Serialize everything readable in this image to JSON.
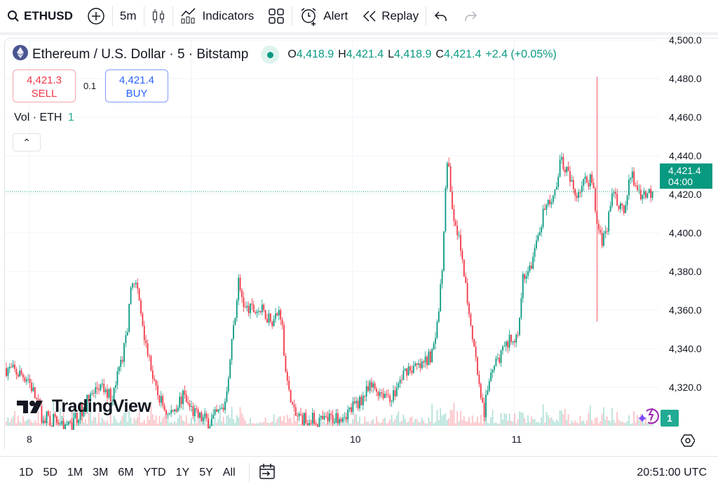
{
  "toolbar": {
    "symbol": "ETHUSD",
    "interval": "5m",
    "indicators": "Indicators",
    "alert": "Alert",
    "replay": "Replay"
  },
  "legend": {
    "title": "Ethereum / U.S. Dollar · 5 · Bitstamp",
    "o_label": "O",
    "o": "4,418.9",
    "h_label": "H",
    "h": "4,421.4",
    "l_label": "L",
    "l": "4,418.9",
    "c_label": "C",
    "c": "4,421.4",
    "change": "+2.4 (+0.05%)"
  },
  "trade": {
    "sell_price": "4,421.3",
    "sell_label": "SELL",
    "spread": "0.1",
    "buy_price": "4,421.4",
    "buy_label": "BUY"
  },
  "volume": {
    "label": "Vol · ETH",
    "value": "1",
    "badge": "1"
  },
  "price_axis": {
    "labels": [
      "4,500.0",
      "4,480.0",
      "4,460.0",
      "4,440.0",
      "4,420.0",
      "4,400.0",
      "4,380.0",
      "4,360.0",
      "4,340.0",
      "4,320.0"
    ],
    "current_price": "4,421.4",
    "countdown": "04:00"
  },
  "time_axis": {
    "labels": [
      "8",
      "9",
      "10",
      "11"
    ]
  },
  "bottom": {
    "ranges": [
      "1D",
      "5D",
      "1M",
      "3M",
      "6M",
      "YTD",
      "1Y",
      "5Y",
      "All"
    ],
    "clock": "20:51:00 UTC"
  },
  "brand": "TradingView",
  "colors": {
    "up": "#089981",
    "down": "#f23645",
    "buy": "#2962ff",
    "accent": "#089981"
  },
  "chart_data": {
    "type": "candlestick",
    "xlabel": "",
    "ylabel": "",
    "ylim": [
      4300,
      4500
    ],
    "grid": true,
    "x": [
      7.853,
      7.991,
      8.078,
      8.252,
      8.425,
      8.512,
      8.599,
      8.642,
      8.685,
      8.729,
      8.772,
      8.859,
      8.946,
      9.033,
      9.119,
      9.206,
      9.249,
      9.293,
      9.336,
      9.423,
      9.51,
      9.553,
      9.597,
      9.64,
      9.813,
      9.987,
      10.117,
      10.247,
      10.334,
      10.421,
      10.508,
      10.551,
      10.586,
      10.616,
      10.659,
      10.703,
      10.746,
      10.811,
      10.855,
      10.941,
      11.028,
      11.05,
      11.115,
      11.18,
      11.245,
      11.289,
      11.332,
      11.375,
      11.419,
      11.484,
      11.514,
      11.549,
      11.614,
      11.679,
      11.722,
      11.787,
      11.861
    ],
    "close": [
      4330,
      4325,
      4305,
      4300,
      4320,
      4315,
      4345,
      4380,
      4360,
      4340,
      4320,
      4305,
      4315,
      4305,
      4302,
      4310,
      4340,
      4375,
      4360,
      4360,
      4355,
      4360,
      4320,
      4305,
      4302,
      4308,
      4320,
      4315,
      4330,
      4330,
      4340,
      4380,
      4440,
      4410,
      4400,
      4370,
      4345,
      4305,
      4330,
      4340,
      4350,
      4375,
      4385,
      4410,
      4420,
      4440,
      4430,
      4420,
      4425,
      4430,
      4400,
      4395,
      4420,
      4410,
      4430,
      4420,
      4421.4
    ],
    "extremes": {
      "high": 4481,
      "low": 4354,
      "at": 11.514
    }
  }
}
